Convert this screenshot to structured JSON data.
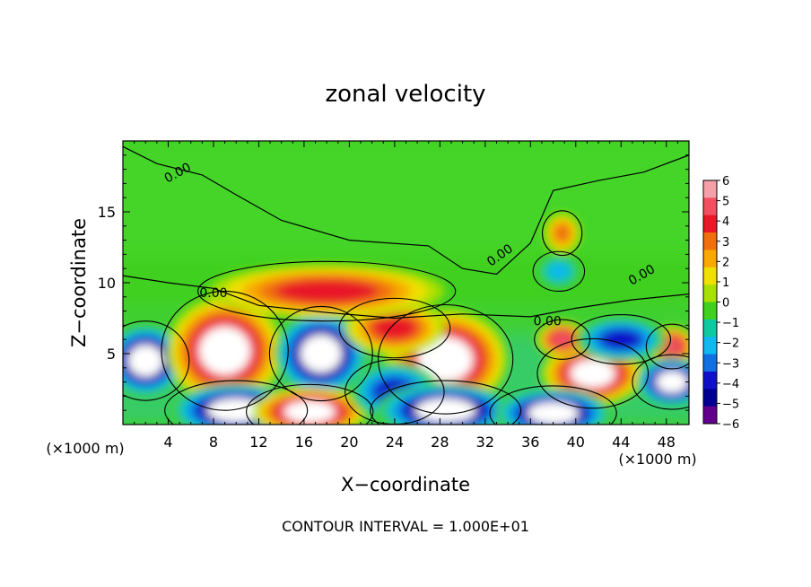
{
  "chart_data": {
    "type": "heatmap",
    "title": "zonal velocity",
    "xlabel": "X−coordinate",
    "ylabel": "Z−coordinate",
    "x_unit": "(×1000 m)",
    "y_unit": "(×1000 m)",
    "footer": "CONTOUR INTERVAL = 1.000E+01",
    "xlim": [
      0,
      50
    ],
    "ylim": [
      0,
      20
    ],
    "x_ticks": [
      4,
      8,
      12,
      16,
      20,
      24,
      28,
      32,
      36,
      40,
      44,
      48
    ],
    "y_ticks": [
      5,
      10,
      15
    ],
    "contour_label": "0.00",
    "colorbar": {
      "ticks": [
        6,
        5,
        4,
        3,
        2,
        1,
        0,
        -1,
        -2,
        -3,
        -4,
        -5,
        -6
      ],
      "tick_labels": [
        "6",
        "5",
        "4",
        "3",
        "2",
        "1",
        "0",
        "−1",
        "−2",
        "−3",
        "−4",
        "−5",
        "−6"
      ],
      "colors": [
        "#f4a0a8",
        "#f05060",
        "#e81828",
        "#f07010",
        "#f8a800",
        "#f0e000",
        "#a8e000",
        "#40d020",
        "#10c8a0",
        "#10b8f0",
        "#1070e0",
        "#1010c8",
        "#000090",
        "#60008c"
      ]
    },
    "features": [
      {
        "name": "negative-core",
        "x": 2,
        "z": 4.5,
        "rx": 2.2,
        "rz": 1.6,
        "value": -6
      },
      {
        "name": "positive-core",
        "x": 9,
        "z": 5.2,
        "rx": 3.2,
        "rz": 2.4,
        "value": 6
      },
      {
        "name": "negative-core",
        "x": 17.5,
        "z": 5,
        "rx": 2.6,
        "rz": 1.9,
        "value": -6
      },
      {
        "name": "positive-core",
        "x": 28.5,
        "z": 4.6,
        "rx": 3.4,
        "rz": 2.2,
        "value": 6
      },
      {
        "name": "positive-core",
        "x": 24,
        "z": 6.8,
        "rx": 2.8,
        "rz": 1.2,
        "value": 4
      },
      {
        "name": "positive-core",
        "x": 41.5,
        "z": 3.6,
        "rx": 2.8,
        "rz": 1.4,
        "value": 6
      },
      {
        "name": "positive-core",
        "x": 38.8,
        "z": 6,
        "rx": 1.4,
        "rz": 0.8,
        "value": 5
      },
      {
        "name": "positive-core",
        "x": 48.5,
        "z": 5.5,
        "rx": 1.3,
        "rz": 0.9,
        "value": 5
      },
      {
        "name": "negative-core",
        "x": 48.5,
        "z": 3,
        "rx": 2,
        "rz": 1.1,
        "value": -6
      },
      {
        "name": "negative-core",
        "x": 10,
        "z": 1,
        "rx": 3.6,
        "rz": 1.2,
        "value": -6
      },
      {
        "name": "positive-core",
        "x": 16.5,
        "z": 0.9,
        "rx": 3.2,
        "rz": 1.1,
        "value": 6
      },
      {
        "name": "negative-core",
        "x": 24,
        "z": 2.3,
        "rx": 2.5,
        "rz": 1.3,
        "value": -4
      },
      {
        "name": "negative-core",
        "x": 28.5,
        "z": 1,
        "rx": 3.8,
        "rz": 1.2,
        "value": -6
      },
      {
        "name": "negative-core",
        "x": 38,
        "z": 0.8,
        "rx": 3.2,
        "rz": 1.1,
        "value": -6
      },
      {
        "name": "negative-core",
        "x": 44,
        "z": 6,
        "rx": 2.5,
        "rz": 1,
        "value": -4
      },
      {
        "name": "positive-band",
        "x": 18,
        "z": 9.4,
        "rx": 6.5,
        "rz": 1.2,
        "value": 4
      },
      {
        "name": "positive-blob",
        "x": 38.8,
        "z": 13.5,
        "rx": 1,
        "rz": 0.9,
        "value": 3
      },
      {
        "name": "negative-blob",
        "x": 38.5,
        "z": 10.8,
        "rx": 1.3,
        "rz": 0.8,
        "value": -2
      }
    ]
  }
}
